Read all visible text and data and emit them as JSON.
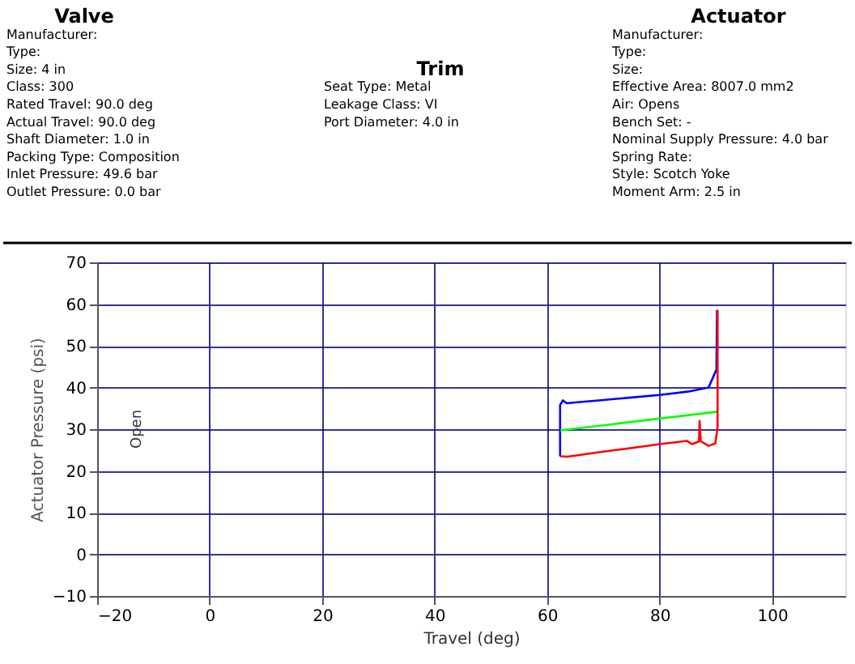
{
  "chart_data": {
    "type": "line",
    "xlabel": "Travel (deg)",
    "ylabel": "Actuator Pressure (psi)",
    "xlim": [
      -20,
      113
    ],
    "ylim": [
      -10,
      70
    ],
    "xticks": [
      -20,
      0,
      20,
      40,
      60,
      80,
      100
    ],
    "yticks": [
      -10,
      0,
      10,
      20,
      30,
      40,
      50,
      60,
      70
    ],
    "grid": true,
    "series": [
      {
        "color": "#0000ff",
        "x": [
          62.3,
          62.3,
          62.8,
          63.5,
          65,
          70,
          75,
          80,
          85,
          88.7,
          90.1,
          90.2
        ],
        "values": [
          23.5,
          35.8,
          36.9,
          36.2,
          36.4,
          37,
          37.6,
          38.2,
          39,
          40,
          44.3,
          58.6
        ]
      },
      {
        "color": "#00ff00",
        "x": [
          62.3,
          90.3
        ],
        "values": [
          29.7,
          34.2
        ]
      },
      {
        "color": "#ff0000",
        "x": [
          62.3,
          63.6,
          70,
          75,
          80,
          84.8,
          85.8,
          87,
          87.1,
          87.3,
          88.7,
          89.9,
          90.3,
          90.3
        ],
        "values": [
          23.5,
          23.4,
          24.6,
          25.5,
          26.4,
          27.2,
          26.4,
          27.1,
          32,
          27.1,
          26,
          26.6,
          30.5,
          58.6
        ]
      }
    ],
    "annotations": [
      "Valve",
      "Manufacturer:",
      "Type:",
      "Size: 4 in",
      "Class: 300",
      "Rated Travel: 90.0 deg",
      "Actual Travel: 90.0 deg",
      "Shaft Diameter: 1.0 in",
      "Packing Type: Composition",
      "Inlet Pressure: 49.6 bar",
      "Outlet Pressure: 0.0 bar",
      "Trim",
      "Seat Type: Metal",
      "Leakage Class: VI",
      "Port Diameter: 4.0 in",
      "Actuator",
      "Manufacturer:",
      "Type:",
      "Size:",
      "Effective Area: 8007.0 mm2",
      "Air: Opens",
      "Bench Set: -",
      "Nominal Supply Pressure: 4.0 bar",
      "Spring Rate:",
      "Style: Scotch Yoke",
      "Moment Arm: 2.5 in",
      "Open"
    ]
  }
}
